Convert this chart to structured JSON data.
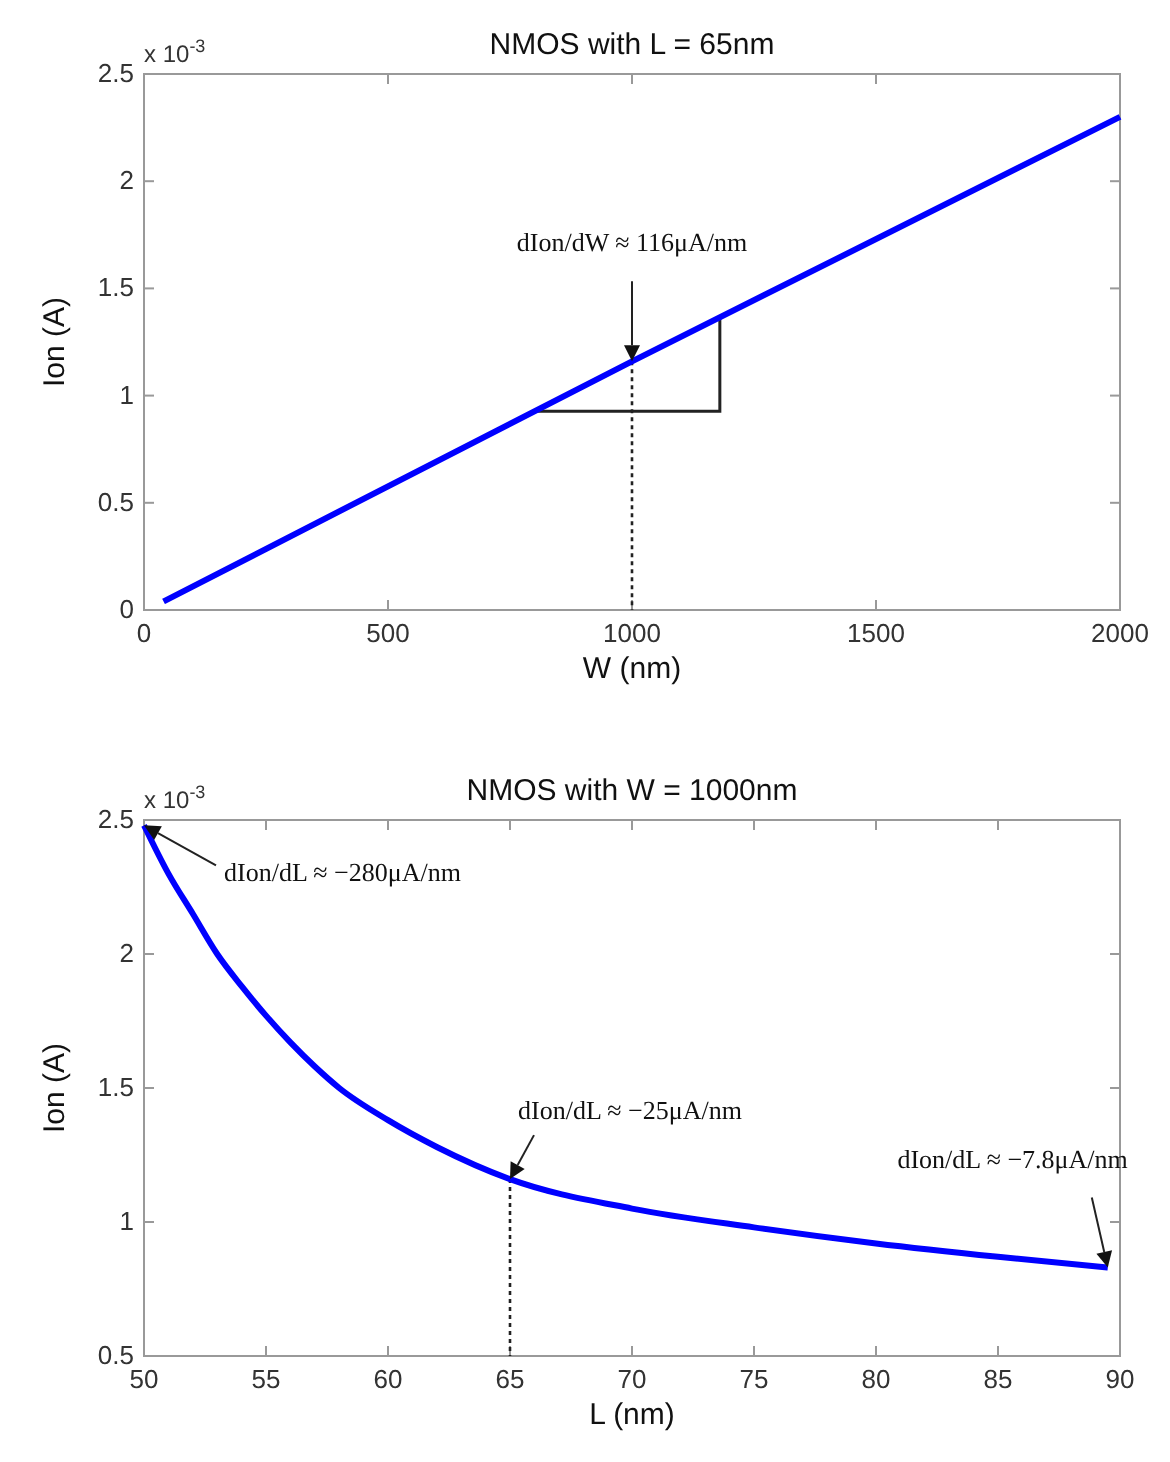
{
  "chart_data": [
    {
      "type": "line",
      "title": "NMOS with L = 65nm",
      "xlabel": "W (nm)",
      "ylabel": "Ion (A)",
      "x": [
        40,
        1000,
        2000
      ],
      "series": [
        {
          "color": "#0000ff",
          "values": [
            0.04,
            1.16,
            2.3
          ]
        }
      ],
      "xlim": [
        0,
        2000
      ],
      "ylim": [
        0,
        2.5
      ],
      "xticks": [
        0,
        500,
        1000,
        1500,
        2000
      ],
      "yticks": [
        0,
        0.5,
        1,
        1.5,
        2,
        2.5
      ],
      "annotations": [
        "x 10$^{-3}$",
        {
          "text": "dIon/dW ≈ 116μA/nm",
          "x": 1000,
          "y": 1.16
        }
      ]
    },
    {
      "type": "line",
      "title": "NMOS with W = 1000nm",
      "xlabel": "L (nm)",
      "ylabel": "Ion (A)",
      "x": [
        50,
        51,
        52,
        53,
        54,
        55,
        56,
        57,
        58,
        60,
        62,
        65,
        70,
        75,
        80,
        85,
        89.5
      ],
      "series": [
        {
          "color": "#0000ff",
          "values": [
            2.48,
            2.3,
            2.15,
            2.0,
            1.88,
            1.77,
            1.67,
            1.58,
            1.5,
            1.38,
            1.28,
            1.16,
            1.05,
            0.98,
            0.92,
            0.87,
            0.83
          ]
        }
      ],
      "xlim": [
        50,
        90
      ],
      "ylim": [
        0.5,
        2.5
      ],
      "xticks": [
        50,
        55,
        60,
        65,
        70,
        75,
        80,
        85,
        90
      ],
      "yticks": [
        0.5,
        1,
        1.5,
        2,
        2.5
      ],
      "annotations": [
        "x 10$^{-3}$",
        {
          "text": "dIon/dL ≈ −280μA/nm",
          "x": 50,
          "y": 2.48
        },
        {
          "text": "dIon/dL ≈ −25μA/nm",
          "x": 65,
          "y": 1.16
        },
        {
          "text": "dIon/dL ≈ −7.8μA/nm",
          "x": 89.5,
          "y": 0.83
        }
      ]
    }
  ]
}
